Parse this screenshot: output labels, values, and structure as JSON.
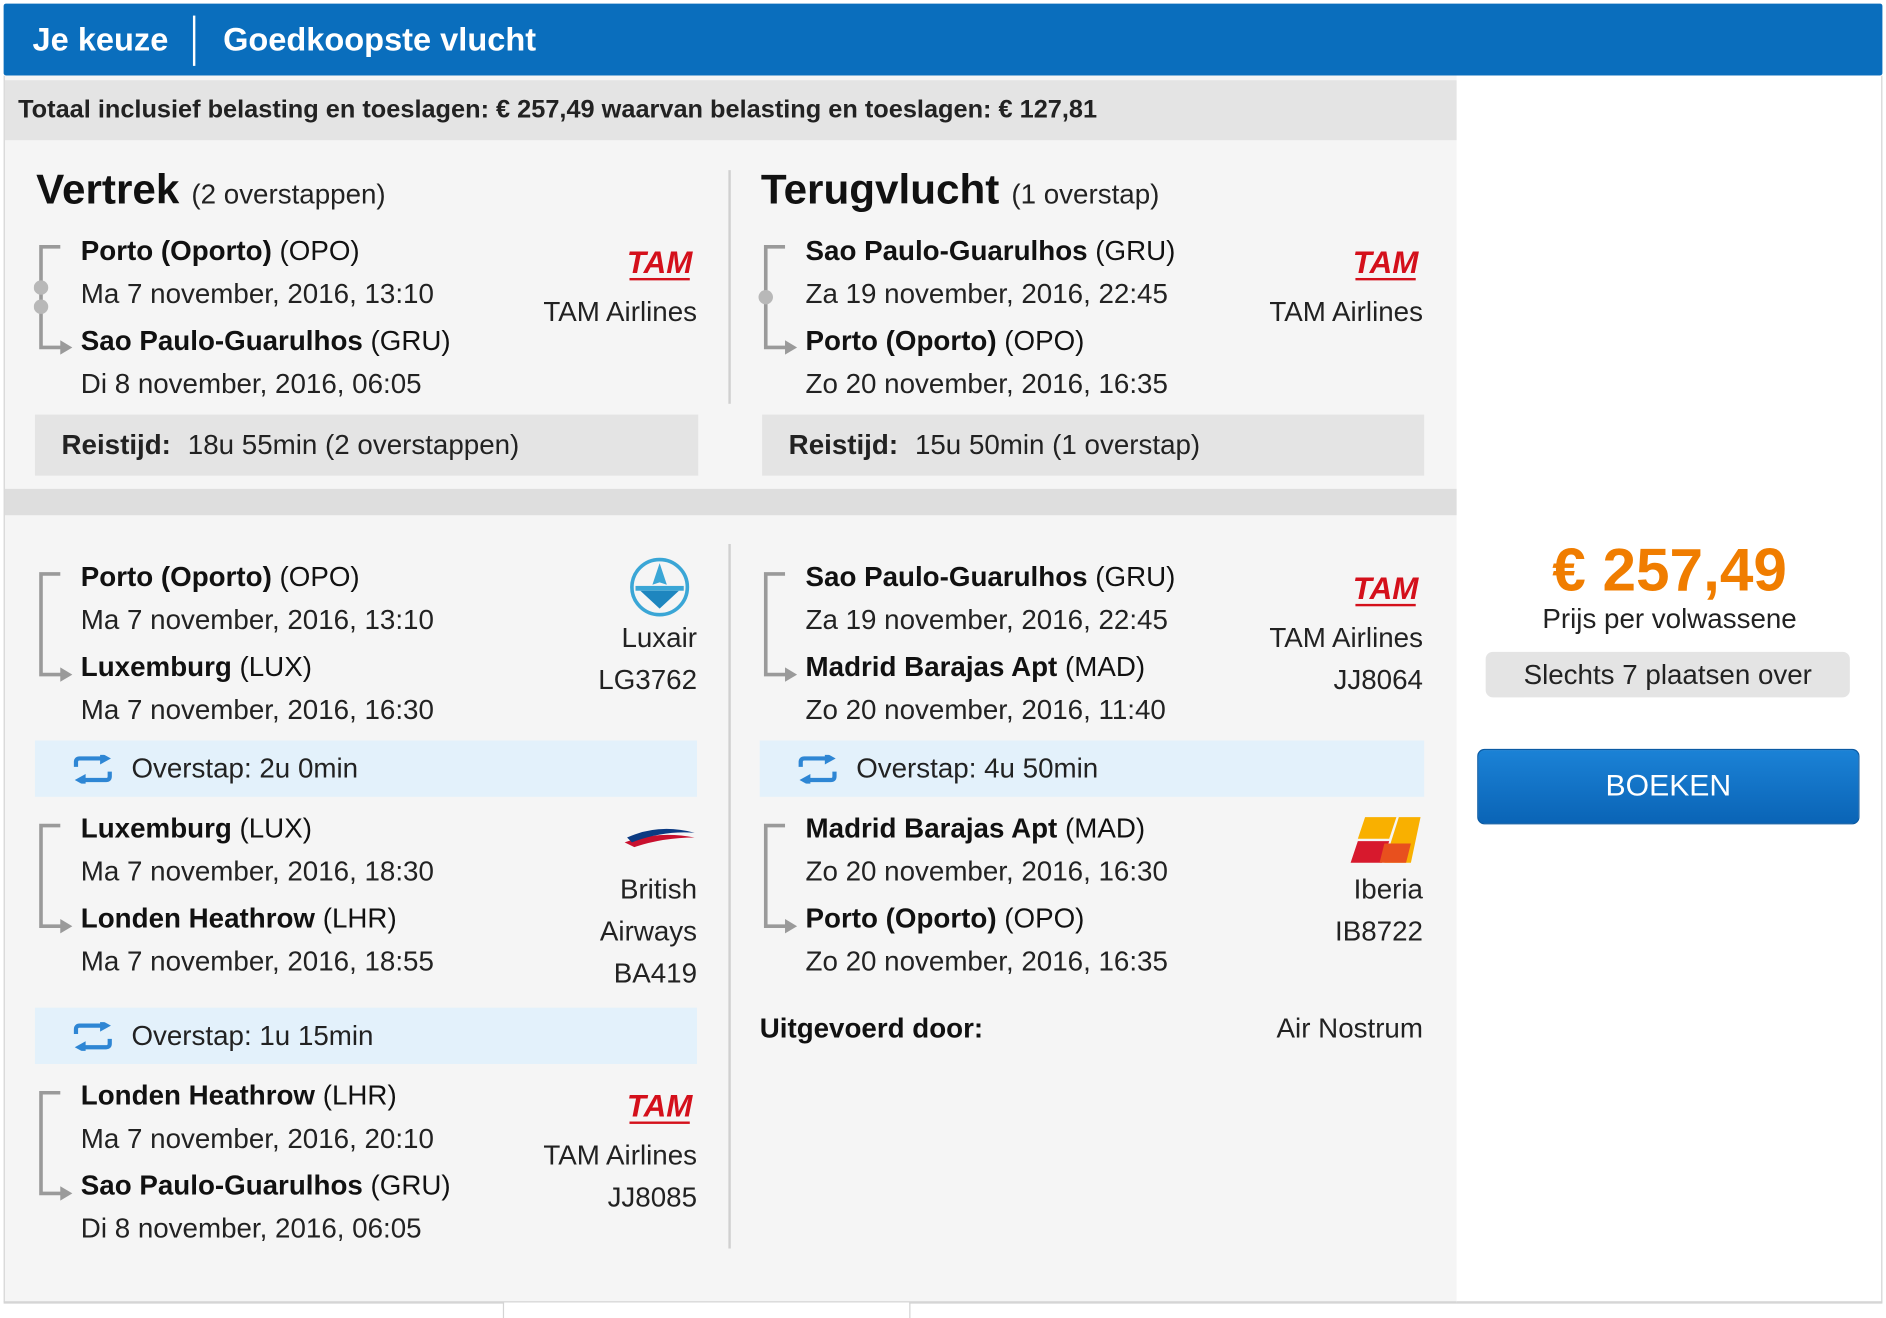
{
  "header": {
    "tab1": "Je keuze",
    "tab2": "Goedkoopste vlucht"
  },
  "total": "Totaal inclusief belasting en toeslagen: € 257,49 waarvan belasting en toeslagen: € 127,81",
  "outbound": {
    "title": "Vertrek",
    "stops": "(2 overstappen)",
    "from": {
      "name": "Porto (Oporto)",
      "code": "(OPO)",
      "datetime": "Ma 7 november, 2016, 13:10"
    },
    "to": {
      "name": "Sao Paulo-Guarulhos",
      "code": "(GRU)",
      "datetime": "Di 8 november, 2016, 06:05"
    },
    "airline": "TAM Airlines",
    "travel_label": "Reistijd:",
    "travel_time": "18u 55min (2 overstappen)"
  },
  "return": {
    "title": "Terugvlucht",
    "stops": "(1 overstap)",
    "from": {
      "name": "Sao Paulo-Guarulhos",
      "code": "(GRU)",
      "datetime": "Za 19 november, 2016, 22:45"
    },
    "to": {
      "name": "Porto (Oporto)",
      "code": "(OPO)",
      "datetime": "Zo 20 november, 2016, 16:35"
    },
    "airline": "TAM Airlines",
    "travel_label": "Reistijd:",
    "travel_time": "15u 50min (1 overstap)"
  },
  "outbound_legs": [
    {
      "from_name": "Porto (Oporto)",
      "from_code": "(OPO)",
      "dep": "Ma 7 november, 2016, 13:10",
      "to_name": "Luxemburg",
      "to_code": "(LUX)",
      "arr": "Ma 7 november, 2016, 16:30",
      "airline": "Luxair",
      "flight": "LG3762",
      "logo": "luxair-logo"
    },
    {
      "from_name": "Luxemburg",
      "from_code": "(LUX)",
      "dep": "Ma 7 november, 2016, 18:30",
      "to_name": "Londen Heathrow",
      "to_code": "(LHR)",
      "arr": "Ma 7 november, 2016, 18:55",
      "airline_line1": "British",
      "airline_line2": "Airways",
      "flight": "BA419",
      "logo": "british-airways-logo"
    },
    {
      "from_name": "Londen Heathrow",
      "from_code": "(LHR)",
      "dep": "Ma 7 november, 2016, 20:10",
      "to_name": "Sao Paulo-Guarulhos",
      "to_code": "(GRU)",
      "arr": "Di 8 november, 2016, 06:05",
      "airline": "TAM Airlines",
      "flight": "JJ8085",
      "logo": "tam-logo"
    }
  ],
  "outbound_transfers": [
    "Overstap: 2u 0min",
    "Overstap: 1u 15min"
  ],
  "return_legs": [
    {
      "from_name": "Sao Paulo-Guarulhos",
      "from_code": "(GRU)",
      "dep": "Za 19 november, 2016, 22:45",
      "to_name": "Madrid Barajas Apt",
      "to_code": "(MAD)",
      "arr": "Zo 20 november, 2016, 11:40",
      "airline": "TAM Airlines",
      "flight": "JJ8064",
      "logo": "tam-logo"
    },
    {
      "from_name": "Madrid Barajas Apt",
      "from_code": "(MAD)",
      "dep": "Zo 20 november, 2016, 16:30",
      "to_name": "Porto (Oporto)",
      "to_code": "(OPO)",
      "arr": "Zo 20 november, 2016, 16:35",
      "airline": "Iberia",
      "flight": "IB8722",
      "logo": "iberia-logo"
    }
  ],
  "return_transfers": [
    "Overstap: 4u 50min"
  ],
  "operated": {
    "label": "Uitgevoerd door:",
    "value": "Air Nostrum"
  },
  "logos": {
    "tam_text": "TAM"
  },
  "pricing": {
    "price": "€ 257,49",
    "per": "Prijs per volwassene",
    "seats": "Slechts 7 plaatsen over",
    "book": "BOEKEN"
  },
  "colors": {
    "header": "#0a6ebd",
    "price": "#f07d00",
    "transfer_bg": "#e3f1fb",
    "button": "#0a64b6"
  }
}
